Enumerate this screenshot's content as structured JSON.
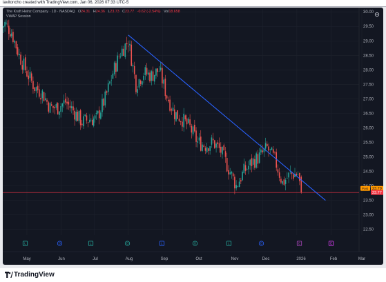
{
  "topbar": {
    "text": "lavitoncho created with TradingView.com, Jan 06, 2026 07:33 UTC-5"
  },
  "legend": {
    "symbol_line": "The Kraft Heinz Company · 1D · NASDAQ",
    "open_label": "O",
    "open": "24.31",
    "high_label": "H",
    "high": "24.36",
    "low_label": "L",
    "low": "23.73",
    "close_label": "C",
    "close": "23.77",
    "change": "-0.62 (-2.54%)",
    "vol_label": "Vol",
    "vol": "18.658",
    "indicator": "VWAP Session"
  },
  "price_axis": {
    "ticks": [
      "30.00",
      "29.50",
      "29.00",
      "28.50",
      "28.00",
      "27.50",
      "27.00",
      "26.50",
      "26.00",
      "25.50",
      "25.00",
      "24.50",
      "24.00",
      "23.50",
      "23.00",
      "22.50"
    ],
    "post_label": "Post",
    "post_value": "23.79",
    "last_value": "23.77"
  },
  "time_axis": {
    "ticks": [
      "May",
      "Jun",
      "Jul",
      "Aug",
      "Sep",
      "Oct",
      "Nov",
      "Dec",
      "2026",
      "Feb",
      "Mar"
    ]
  },
  "event_markers": [
    "L",
    "D",
    "L",
    "D",
    "L",
    "D",
    "L",
    "D",
    "E",
    "E"
  ],
  "colors": {
    "up": "#26a69a",
    "down": "#ef5350",
    "trendline": "#2962ff",
    "price_line": "#f23645",
    "background": "#131722"
  },
  "footer": {
    "brand": "TradingView"
  },
  "chart_data": {
    "type": "candlestick",
    "symbol": "KHC",
    "interval": "1D",
    "ylim": [
      22.3,
      30.1
    ],
    "y_ticks": [
      30.0,
      29.5,
      29.0,
      28.5,
      28.0,
      27.5,
      27.0,
      26.5,
      26.0,
      25.5,
      25.0,
      24.5,
      24.0,
      23.5,
      23.0,
      22.5
    ],
    "x_ticks": [
      "May",
      "Jun",
      "Jul",
      "Aug",
      "Sep",
      "Oct",
      "Nov",
      "Dec",
      "2026",
      "Feb",
      "Mar"
    ],
    "close_path": [
      [
        "Apr 07",
        29.4
      ],
      [
        "Apr 11",
        29.6
      ],
      [
        "Apr 17",
        29.3
      ],
      [
        "Apr 24",
        28.5
      ],
      [
        "May 01",
        27.9
      ],
      [
        "May 08",
        27.4
      ],
      [
        "May 15",
        27.2
      ],
      [
        "May 22",
        26.7
      ],
      [
        "May 29",
        26.7
      ],
      [
        "Jun 05",
        26.9
      ],
      [
        "Jun 12",
        26.6
      ],
      [
        "Jun 20",
        26.2
      ],
      [
        "Jun 27",
        26.3
      ],
      [
        "Jul 03",
        26.3
      ],
      [
        "Jul 11",
        27.0
      ],
      [
        "Jul 18",
        27.9
      ],
      [
        "Jul 25",
        28.6
      ],
      [
        "Aug 01",
        29.0
      ],
      [
        "Aug 08",
        27.5
      ],
      [
        "Aug 15",
        27.9
      ],
      [
        "Aug 22",
        27.8
      ],
      [
        "Aug 29",
        28.0
      ],
      [
        "Sep 05",
        27.1
      ],
      [
        "Sep 12",
        26.5
      ],
      [
        "Sep 19",
        26.3
      ],
      [
        "Sep 26",
        26.0
      ],
      [
        "Oct 03",
        25.5
      ],
      [
        "Oct 10",
        25.4
      ],
      [
        "Oct 17",
        25.5
      ],
      [
        "Oct 24",
        25.2
      ],
      [
        "Oct 31",
        24.6
      ],
      [
        "Nov 07",
        24.0
      ],
      [
        "Nov 14",
        24.5
      ],
      [
        "Nov 21",
        24.8
      ],
      [
        "Nov 28",
        25.0
      ],
      [
        "Dec 05",
        25.3
      ],
      [
        "Dec 12",
        24.9
      ],
      [
        "Dec 19",
        24.1
      ],
      [
        "Dec 26",
        24.4
      ],
      [
        "Jan 02",
        24.4
      ],
      [
        "Jan 05",
        23.77
      ]
    ],
    "last": {
      "open": 24.31,
      "high": 24.36,
      "low": 23.73,
      "close": 23.77,
      "change": -0.62,
      "change_pct": -2.54,
      "volume": "18.658"
    },
    "trendline": {
      "from": [
        "Aug 01",
        29.2
      ],
      "to": [
        "Jan 27",
        23.5
      ]
    },
    "horizontal_line": 23.77
  }
}
